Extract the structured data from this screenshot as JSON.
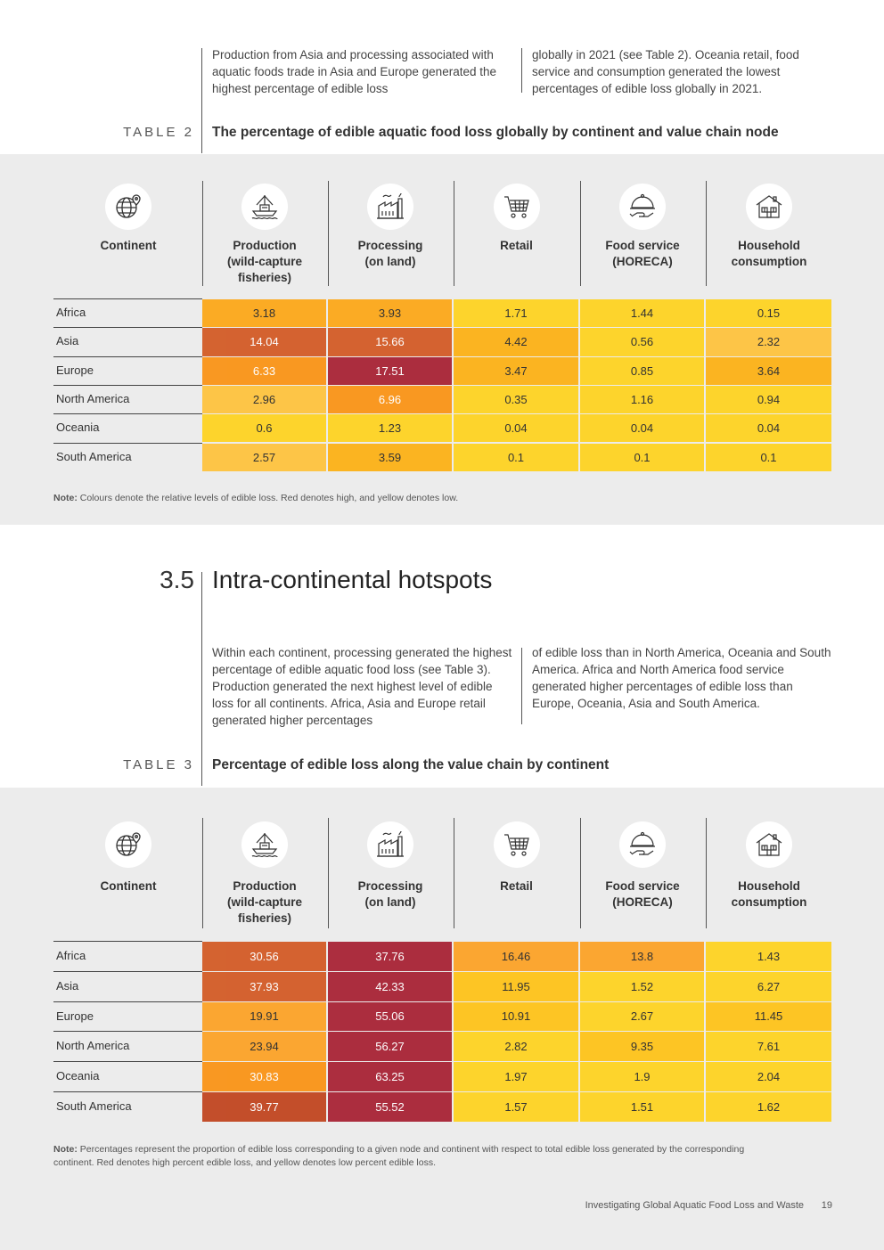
{
  "intro_top": {
    "col1": "Production from Asia and processing associated with aquatic foods trade in Asia and Europe generated the highest percentage of edible loss",
    "col2": "globally in 2021 (see Table 2). Oceania retail, food service and consumption generated the lowest percentages of edible loss globally in 2021."
  },
  "table2": {
    "label": "TABLE 2",
    "title": "The percentage of edible aquatic food loss globally by continent and value chain node",
    "headers": {
      "continent": "Continent",
      "production": "Production\n(wild-capture\nfisheries)",
      "processing": "Processing\n(on land)",
      "retail": "Retail",
      "food_service": "Food service\n(HORECA)",
      "household": "Household\nconsumption"
    },
    "icons": [
      "globe-pin-icon",
      "fishing-boat-icon",
      "factory-icon",
      "shopping-cart-icon",
      "serving-dish-icon",
      "house-icon"
    ],
    "rows": [
      {
        "continent": "Africa",
        "values": [
          "3.18",
          "3.93",
          "1.71",
          "1.44",
          "0.15"
        ],
        "colors": [
          "#fbab24",
          "#fbab24",
          "#fdd42c",
          "#fdd42c",
          "#fdd42c"
        ]
      },
      {
        "continent": "Asia",
        "values": [
          "14.04",
          "15.66",
          "4.42",
          "0.56",
          "2.32"
        ],
        "colors": [
          "#d2541c",
          "#d2541c",
          "#fbb421",
          "#fdd42c",
          "#fdc547"
        ]
      },
      {
        "continent": "Europe",
        "values": [
          "6.33",
          "17.51",
          "3.47",
          "0.85",
          "3.64"
        ],
        "colors": [
          "#fb8f0c",
          "#a5192c",
          "#fbb421",
          "#fdd42c",
          "#fbb421"
        ]
      },
      {
        "continent": "North America",
        "values": [
          "2.96",
          "6.96",
          "0.35",
          "1.16",
          "0.94"
        ],
        "colors": [
          "#fdc547",
          "#fb8f0c",
          "#fdd42c",
          "#fdd42c",
          "#fdd42c"
        ]
      },
      {
        "continent": "Oceania",
        "values": [
          "0.6",
          "1.23",
          "0.04",
          "0.04",
          "0.04"
        ],
        "colors": [
          "#fdd42c",
          "#fdd42c",
          "#fdd42c",
          "#fdd42c",
          "#fdd42c"
        ]
      },
      {
        "continent": "South America",
        "values": [
          "2.57",
          "3.59",
          "0.1",
          "0.1",
          "0.1"
        ],
        "colors": [
          "#fdc547",
          "#fbb421",
          "#fdd42c",
          "#fdd42c",
          "#fdd42c"
        ]
      }
    ],
    "light_text": [
      [
        false,
        false,
        false,
        false,
        false
      ],
      [
        true,
        true,
        false,
        false,
        false
      ],
      [
        true,
        true,
        false,
        false,
        false
      ],
      [
        false,
        true,
        false,
        false,
        false
      ],
      [
        false,
        false,
        false,
        false,
        false
      ],
      [
        false,
        false,
        false,
        false,
        false
      ]
    ],
    "note_label": "Note:",
    "note_text": " Colours denote the relative levels of edible loss. Red denotes high, and yellow denotes low."
  },
  "section": {
    "number": "3.5",
    "title": "Intra-continental hotspots"
  },
  "intro_mid": {
    "col1": "Within each continent, processing generated the highest percentage of edible aquatic food loss (see Table 3). Production generated the next highest level of edible loss for all continents. Africa, Asia and Europe retail generated higher percentages",
    "col2": "of edible loss than in North America, Oceania and South America. Africa and North America food service generated higher percentages of edible loss than Europe, Oceania, Asia and South America."
  },
  "table3": {
    "label": "TABLE 3",
    "title": "Percentage of edible loss along the value chain by continent",
    "headers": {
      "continent": "Continent",
      "production": "Production\n(wild-capture\nfisheries)",
      "processing": "Processing\n(on land)",
      "retail": "Retail",
      "food_service": "Food service\n(HORECA)",
      "household": "Household\nconsumption"
    },
    "rows": [
      {
        "continent": "Africa",
        "values": [
          "30.56",
          "37.76",
          "16.46",
          "13.8",
          "1.43"
        ],
        "colors": [
          "#d2541c",
          "#a5192c",
          "#fba631",
          "#fba631",
          "#fdd42c"
        ]
      },
      {
        "continent": "Asia",
        "values": [
          "37.93",
          "42.33",
          "11.95",
          "1.52",
          "6.27"
        ],
        "colors": [
          "#d2541c",
          "#a5192c",
          "#fdc524",
          "#fdd42c",
          "#fdd42c"
        ]
      },
      {
        "continent": "Europe",
        "values": [
          "19.91",
          "55.06",
          "10.91",
          "2.67",
          "11.45"
        ],
        "colors": [
          "#fba631",
          "#a5192c",
          "#fdc524",
          "#fdd42c",
          "#fdc524"
        ]
      },
      {
        "continent": "North America",
        "values": [
          "23.94",
          "56.27",
          "2.82",
          "9.35",
          "7.61"
        ],
        "colors": [
          "#fba631",
          "#a5192c",
          "#fdd42c",
          "#fdc524",
          "#fdd42c"
        ]
      },
      {
        "continent": "Oceania",
        "values": [
          "30.83",
          "63.25",
          "1.97",
          "1.9",
          "2.04"
        ],
        "colors": [
          "#fb8f0c",
          "#a5192c",
          "#fdd42c",
          "#fdd42c",
          "#fdd42c"
        ]
      },
      {
        "continent": "South America",
        "values": [
          "39.77",
          "55.52",
          "1.57",
          "1.51",
          "1.62"
        ],
        "colors": [
          "#bf3d16",
          "#a5192c",
          "#fdd42c",
          "#fdd42c",
          "#fdd42c"
        ]
      }
    ],
    "light_text": [
      [
        true,
        true,
        false,
        false,
        false
      ],
      [
        true,
        true,
        false,
        false,
        false
      ],
      [
        false,
        true,
        false,
        false,
        false
      ],
      [
        false,
        true,
        false,
        false,
        false
      ],
      [
        true,
        true,
        false,
        false,
        false
      ],
      [
        true,
        true,
        false,
        false,
        false
      ]
    ],
    "note_label": "Note:",
    "note_text": " Percentages represent the proportion of edible loss corresponding to a given node and continent with respect to total edible loss generated by the corresponding continent. Red denotes high percent edible loss, and yellow denotes low percent edible loss."
  },
  "footer": {
    "title": "Investigating Global Aquatic Food Loss and Waste",
    "page": "19"
  }
}
